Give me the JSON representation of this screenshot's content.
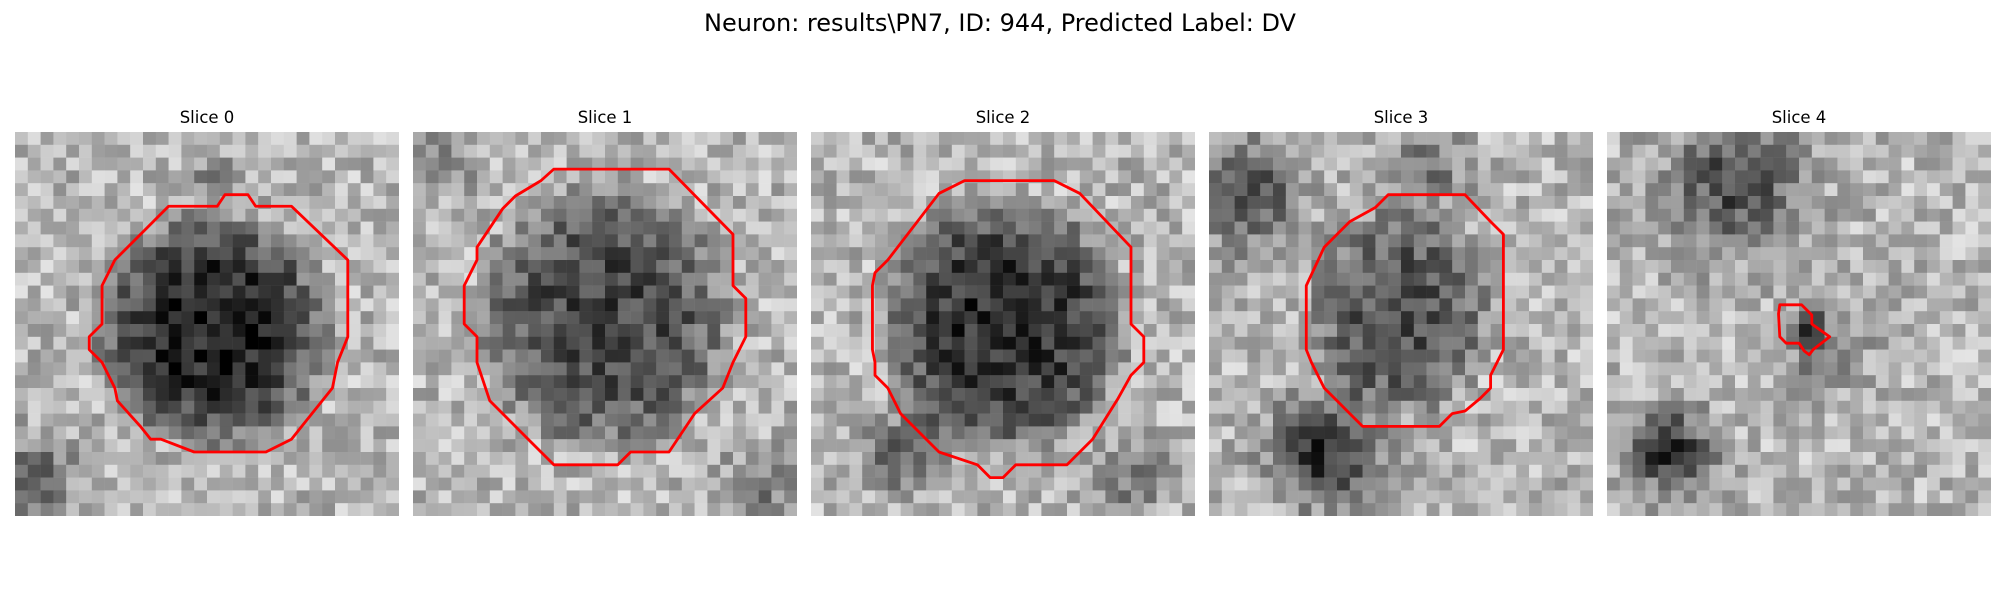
{
  "figure": {
    "title": "Neuron: results\\PN7, ID: 944, Predicted Label: DV"
  },
  "panels": [
    {
      "title": "Slice 0",
      "contour_color": "#ff0000"
    },
    {
      "title": "Slice 1",
      "contour_color": "#ff0000"
    },
    {
      "title": "Slice 2",
      "contour_color": "#ff0000"
    },
    {
      "title": "Slice 3",
      "contour_color": "#ff0000"
    },
    {
      "title": "Slice 4",
      "contour_color": "#ff0000"
    }
  ]
}
